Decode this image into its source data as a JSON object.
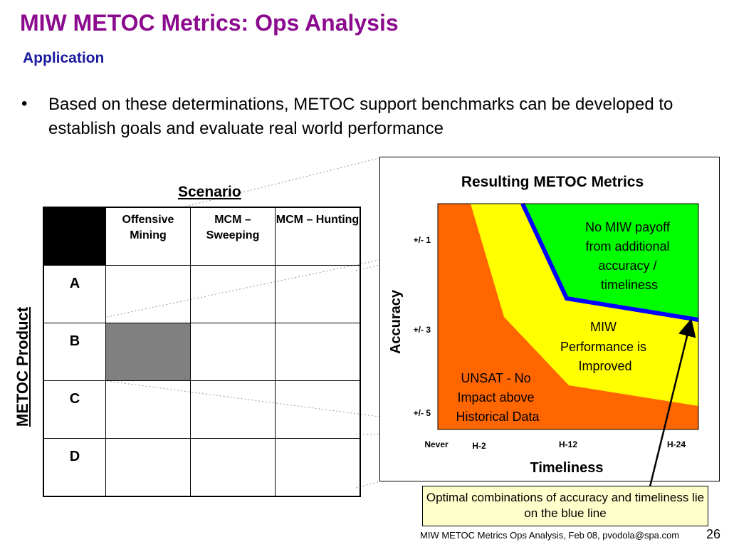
{
  "slide": {
    "title": "MIW METOC Metrics:  Ops Analysis",
    "subtitle": "Application",
    "bullet": "Based on these determinations, METOC support benchmarks can be developed to establish goals and evaluate real world performance"
  },
  "matrix": {
    "column_label": "Scenario",
    "row_label": "METOC Product",
    "columns": [
      "Offensive Mining",
      "MCM – Sweeping",
      "MCM – Hunting"
    ],
    "rows": [
      "A",
      "B",
      "C",
      "D"
    ],
    "highlighted_cell": {
      "row": "B",
      "column": "Offensive Mining",
      "color": "#808080"
    }
  },
  "chart": {
    "title": "Resulting METOC Metrics",
    "ylabel": "Accuracy",
    "xlabel": "Timeliness",
    "y_ticks": [
      "+/- 1",
      "+/- 3",
      "+/- 5"
    ],
    "x_ticks": [
      "Never",
      "H-2",
      "H-12",
      "H-24"
    ],
    "regions": [
      {
        "label": "No MIW payoff from additional accuracy / timeliness",
        "color": "#00FF00"
      },
      {
        "label": "MIW Performance is Improved",
        "color": "#FFFF00"
      },
      {
        "label": "UNSAT - No Impact above Historical Data",
        "color": "#FF6600"
      }
    ],
    "line_color": "#0000FF"
  },
  "callout": {
    "text": "Optimal combinations of accuracy and timeliness lie on the blue line"
  },
  "footer": {
    "text": "MIW METOC Metrics Ops Analysis, Feb 08, pvodola@spa.com",
    "page": "26"
  }
}
